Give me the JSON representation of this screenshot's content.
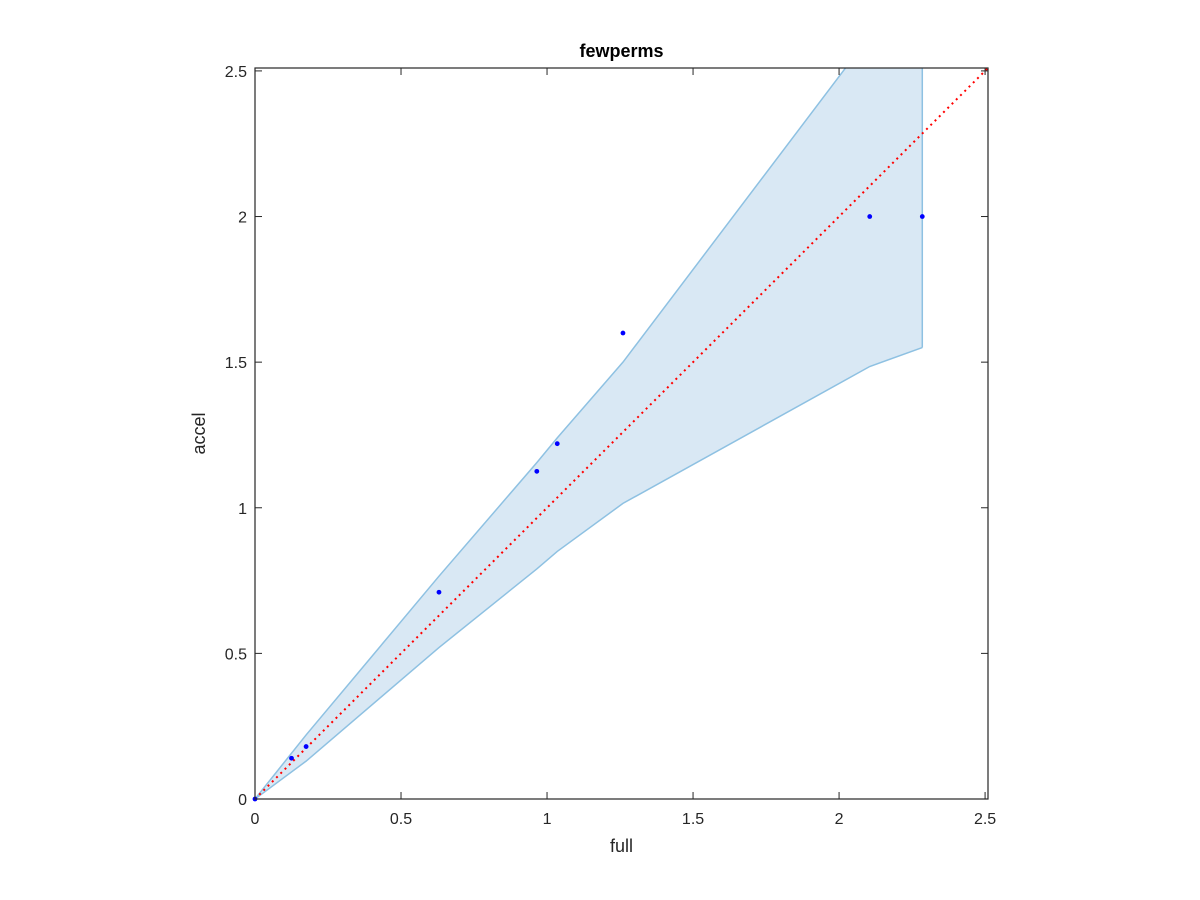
{
  "chart_data": {
    "type": "scatter",
    "title": "fewperms",
    "xlabel": "full",
    "ylabel": "accel",
    "xlim": [
      0,
      2.51
    ],
    "ylim": [
      0,
      2.51
    ],
    "xticks": [
      0,
      0.5,
      1,
      1.5,
      2,
      2.5
    ],
    "yticks": [
      0,
      0.5,
      1,
      1.5,
      2,
      2.5
    ],
    "xtick_labels": [
      "0",
      "0.5",
      "1",
      "1.5",
      "2",
      "2.5"
    ],
    "ytick_labels": [
      "0",
      "0.5",
      "1",
      "1.5",
      "2",
      "2.5"
    ],
    "grid": false,
    "points": {
      "color": "#0000ff",
      "x": [
        0,
        0.125,
        0.175,
        0.63,
        0.965,
        1.035,
        1.26,
        2.105,
        2.285
      ],
      "y": [
        0,
        0.14,
        0.18,
        0.71,
        1.125,
        1.22,
        1.6,
        2.0,
        2.0
      ]
    },
    "band": {
      "fill": "#d9e8f4",
      "edge": "#8ec1e2",
      "x": [
        0,
        0.175,
        0.63,
        0.965,
        1.035,
        1.26,
        2.105,
        2.285
      ],
      "upper": [
        0,
        0.22,
        0.765,
        1.155,
        1.24,
        1.5,
        2.62,
        2.8
      ],
      "lower": [
        0,
        0.13,
        0.52,
        0.79,
        0.85,
        1.015,
        1.485,
        1.55
      ]
    },
    "reference_line": {
      "color": "#ff0000",
      "style": "dotted",
      "x": [
        0,
        2.51
      ],
      "y": [
        0,
        2.51
      ]
    }
  }
}
